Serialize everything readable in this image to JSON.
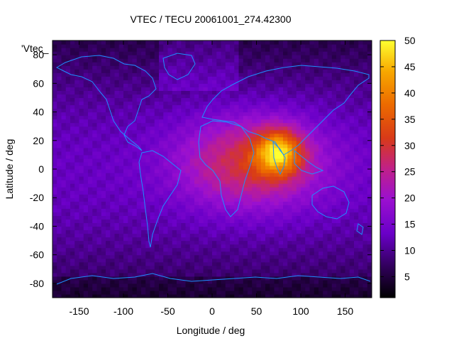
{
  "chart_data": {
    "type": "heatmap",
    "title": "VTEC / TECU 20061001_274.42300",
    "xlabel": "Longitude / deg",
    "ylabel": "Latitude / deg",
    "series_key": "'Vtec_",
    "xlim": [
      -180,
      180
    ],
    "ylim": [
      -90,
      90
    ],
    "x_ticks": [
      "-150",
      "-100",
      "-50",
      "0",
      "50",
      "100",
      "150"
    ],
    "y_ticks": [
      "-80",
      "-60",
      "-40",
      "-20",
      "0",
      "20",
      "40",
      "60",
      "80"
    ],
    "x_tick_values": [
      -150,
      -100,
      -50,
      0,
      50,
      100,
      150
    ],
    "y_tick_values": [
      -80,
      -60,
      -40,
      -20,
      0,
      20,
      40,
      60,
      80
    ],
    "colorbar": {
      "range": [
        1,
        50
      ],
      "ticks": [
        "5",
        "10",
        "15",
        "20",
        "25",
        "30",
        "35",
        "40",
        "45",
        "50"
      ],
      "tick_values": [
        5,
        10,
        15,
        20,
        25,
        30,
        35,
        40,
        45,
        50
      ],
      "palette": "black-purple-red-orange-yellow"
    },
    "field_model": {
      "background_equator": 13,
      "background_pole": 6,
      "peak": {
        "lon": 75,
        "lat": 12,
        "value": 50
      },
      "band_center_lon": 45,
      "band_center_lat": 5
    },
    "coastline_color": "#1e90ff",
    "grid": false
  }
}
